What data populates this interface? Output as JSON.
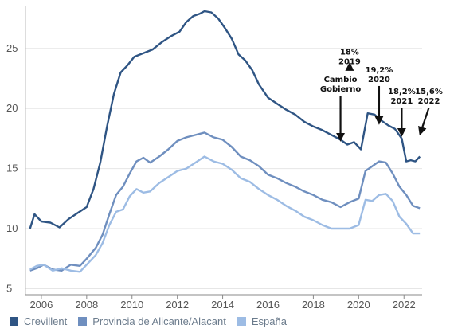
{
  "chart_data": {
    "type": "line",
    "title": "",
    "xlabel": "",
    "ylabel": "",
    "xlim": [
      2005.3,
      2022.8
    ],
    "ylim": [
      4.5,
      28.5
    ],
    "x_ticks": [
      2006,
      2008,
      2010,
      2012,
      2014,
      2016,
      2018,
      2020,
      2022
    ],
    "y_ticks": [
      5,
      10,
      15,
      20,
      25
    ],
    "grid": "horizontal",
    "legend_position": "bottom-left",
    "series": [
      {
        "name": "Crevillent",
        "color": "#2f5584",
        "points": [
          [
            2005.5,
            10.0
          ],
          [
            2005.7,
            11.2
          ],
          [
            2006.0,
            10.6
          ],
          [
            2006.4,
            10.5
          ],
          [
            2006.8,
            10.1
          ],
          [
            2007.2,
            10.8
          ],
          [
            2007.6,
            11.3
          ],
          [
            2008.0,
            11.8
          ],
          [
            2008.3,
            13.3
          ],
          [
            2008.6,
            15.5
          ],
          [
            2008.9,
            18.5
          ],
          [
            2009.2,
            21.2
          ],
          [
            2009.5,
            23.0
          ],
          [
            2009.8,
            23.6
          ],
          [
            2010.1,
            24.3
          ],
          [
            2010.5,
            24.6
          ],
          [
            2010.9,
            24.9
          ],
          [
            2011.3,
            25.5
          ],
          [
            2011.7,
            26.0
          ],
          [
            2012.1,
            26.4
          ],
          [
            2012.4,
            27.2
          ],
          [
            2012.7,
            27.7
          ],
          [
            2013.0,
            27.9
          ],
          [
            2013.2,
            28.1
          ],
          [
            2013.5,
            28.0
          ],
          [
            2013.8,
            27.5
          ],
          [
            2014.1,
            26.7
          ],
          [
            2014.4,
            25.8
          ],
          [
            2014.7,
            24.5
          ],
          [
            2015.0,
            24.0
          ],
          [
            2015.3,
            23.2
          ],
          [
            2015.6,
            22.0
          ],
          [
            2016.0,
            20.9
          ],
          [
            2016.4,
            20.4
          ],
          [
            2016.8,
            19.9
          ],
          [
            2017.2,
            19.5
          ],
          [
            2017.6,
            18.9
          ],
          [
            2018.0,
            18.5
          ],
          [
            2018.4,
            18.2
          ],
          [
            2018.8,
            17.8
          ],
          [
            2019.2,
            17.4
          ],
          [
            2019.5,
            17.0
          ],
          [
            2019.8,
            17.2
          ],
          [
            2020.1,
            16.6
          ],
          [
            2020.4,
            19.6
          ],
          [
            2020.7,
            19.5
          ],
          [
            2021.0,
            19.0
          ],
          [
            2021.3,
            18.6
          ],
          [
            2021.6,
            18.3
          ],
          [
            2021.9,
            17.5
          ],
          [
            2022.1,
            15.6
          ],
          [
            2022.3,
            15.7
          ],
          [
            2022.5,
            15.6
          ],
          [
            2022.7,
            16.0
          ]
        ]
      },
      {
        "name": "Provincia de Alicante/Alacant",
        "color": "#6f8fbf",
        "points": [
          [
            2005.5,
            6.5
          ],
          [
            2005.8,
            6.7
          ],
          [
            2006.1,
            7.0
          ],
          [
            2006.5,
            6.6
          ],
          [
            2006.9,
            6.5
          ],
          [
            2007.3,
            7.0
          ],
          [
            2007.7,
            6.9
          ],
          [
            2008.0,
            7.5
          ],
          [
            2008.4,
            8.4
          ],
          [
            2008.7,
            9.5
          ],
          [
            2009.0,
            11.2
          ],
          [
            2009.3,
            12.8
          ],
          [
            2009.6,
            13.5
          ],
          [
            2009.9,
            14.6
          ],
          [
            2010.2,
            15.6
          ],
          [
            2010.5,
            15.9
          ],
          [
            2010.8,
            15.5
          ],
          [
            2011.2,
            16.0
          ],
          [
            2011.6,
            16.6
          ],
          [
            2012.0,
            17.3
          ],
          [
            2012.4,
            17.6
          ],
          [
            2012.8,
            17.8
          ],
          [
            2013.2,
            18.0
          ],
          [
            2013.6,
            17.6
          ],
          [
            2014.0,
            17.4
          ],
          [
            2014.4,
            16.8
          ],
          [
            2014.8,
            16.0
          ],
          [
            2015.2,
            15.7
          ],
          [
            2015.6,
            15.2
          ],
          [
            2016.0,
            14.5
          ],
          [
            2016.4,
            14.2
          ],
          [
            2016.8,
            13.8
          ],
          [
            2017.2,
            13.5
          ],
          [
            2017.6,
            13.1
          ],
          [
            2018.0,
            12.8
          ],
          [
            2018.4,
            12.4
          ],
          [
            2018.8,
            12.2
          ],
          [
            2019.2,
            11.8
          ],
          [
            2019.6,
            12.2
          ],
          [
            2020.0,
            12.5
          ],
          [
            2020.3,
            14.8
          ],
          [
            2020.6,
            15.2
          ],
          [
            2020.9,
            15.6
          ],
          [
            2021.2,
            15.5
          ],
          [
            2021.5,
            14.6
          ],
          [
            2021.8,
            13.5
          ],
          [
            2022.1,
            12.8
          ],
          [
            2022.4,
            11.9
          ],
          [
            2022.7,
            11.7
          ]
        ]
      },
      {
        "name": "España",
        "color": "#9dbce4",
        "points": [
          [
            2005.5,
            6.6
          ],
          [
            2005.8,
            6.9
          ],
          [
            2006.1,
            7.0
          ],
          [
            2006.5,
            6.5
          ],
          [
            2006.9,
            6.7
          ],
          [
            2007.3,
            6.5
          ],
          [
            2007.7,
            6.4
          ],
          [
            2008.0,
            7.0
          ],
          [
            2008.4,
            7.8
          ],
          [
            2008.7,
            8.8
          ],
          [
            2009.0,
            10.3
          ],
          [
            2009.3,
            11.4
          ],
          [
            2009.6,
            11.6
          ],
          [
            2009.9,
            12.7
          ],
          [
            2010.2,
            13.3
          ],
          [
            2010.5,
            13.0
          ],
          [
            2010.8,
            13.1
          ],
          [
            2011.2,
            13.8
          ],
          [
            2011.6,
            14.3
          ],
          [
            2012.0,
            14.8
          ],
          [
            2012.4,
            15.0
          ],
          [
            2012.8,
            15.5
          ],
          [
            2013.2,
            16.0
          ],
          [
            2013.6,
            15.6
          ],
          [
            2014.0,
            15.4
          ],
          [
            2014.4,
            14.9
          ],
          [
            2014.8,
            14.2
          ],
          [
            2015.2,
            13.9
          ],
          [
            2015.6,
            13.3
          ],
          [
            2016.0,
            12.8
          ],
          [
            2016.4,
            12.4
          ],
          [
            2016.8,
            11.9
          ],
          [
            2017.2,
            11.5
          ],
          [
            2017.6,
            11.0
          ],
          [
            2018.0,
            10.7
          ],
          [
            2018.4,
            10.3
          ],
          [
            2018.8,
            10.0
          ],
          [
            2019.2,
            10.0
          ],
          [
            2019.6,
            10.0
          ],
          [
            2020.0,
            10.3
          ],
          [
            2020.3,
            12.4
          ],
          [
            2020.6,
            12.3
          ],
          [
            2020.9,
            12.8
          ],
          [
            2021.2,
            12.9
          ],
          [
            2021.5,
            12.3
          ],
          [
            2021.8,
            11.0
          ],
          [
            2022.1,
            10.4
          ],
          [
            2022.4,
            9.6
          ],
          [
            2022.7,
            9.6
          ]
        ]
      }
    ],
    "annotations": [
      {
        "lines": [
          "18%",
          "2019"
        ],
        "x": 2019.6,
        "y": 24.5,
        "arrow": "down",
        "arrow_to_y": 23.5
      },
      {
        "lines": [
          "Cambio",
          "Gobierno"
        ],
        "x": 2019.2,
        "y": 22.2,
        "arrow": "down",
        "arrow_to_y": 17.6
      },
      {
        "lines": [
          "19,2%",
          "2020"
        ],
        "x": 2020.9,
        "y": 23.0,
        "arrow": "down",
        "arrow_to_y": 19.0
      },
      {
        "lines": [
          "18,2%",
          "2021"
        ],
        "x": 2021.9,
        "y": 21.2,
        "arrow": "down",
        "arrow_to_y": 18.0
      },
      {
        "lines": [
          "15,6%",
          "2022"
        ],
        "x": 2023.1,
        "y": 21.2,
        "arrow": "down-left",
        "arrow_to_y": 18.1
      }
    ]
  }
}
